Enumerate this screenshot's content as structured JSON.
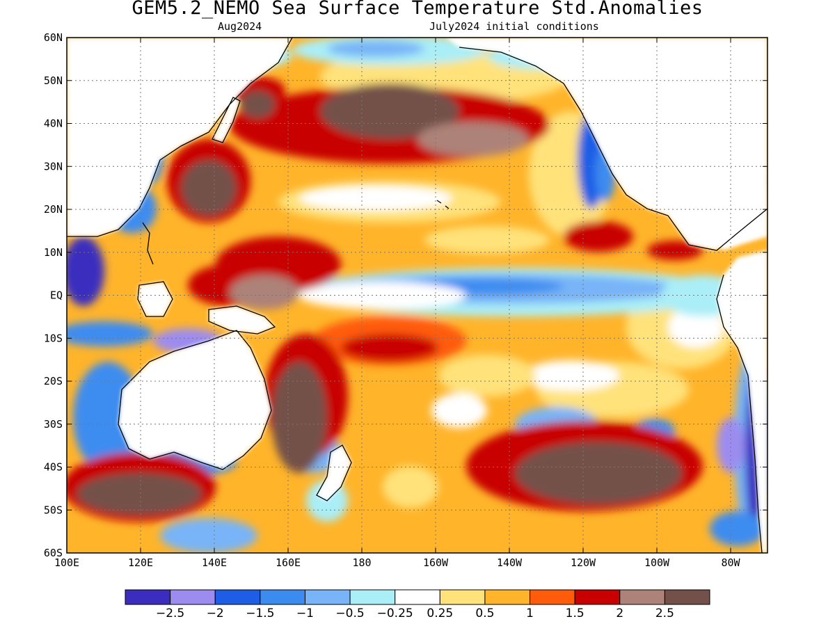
{
  "title": "GEM5.2_NEMO Sea Surface Temperature Std.Anomalies",
  "subtitle_left": "Aug2024",
  "subtitle_right": "July2024 initial conditions",
  "map": {
    "lon_range": [
      100,
      290
    ],
    "lat_range": [
      -60,
      60
    ],
    "x_ticks": [
      {
        "lon": 100,
        "label": "100E"
      },
      {
        "lon": 120,
        "label": "120E"
      },
      {
        "lon": 140,
        "label": "140E"
      },
      {
        "lon": 160,
        "label": "160E"
      },
      {
        "lon": 180,
        "label": "180"
      },
      {
        "lon": 200,
        "label": "160W"
      },
      {
        "lon": 220,
        "label": "140W"
      },
      {
        "lon": 240,
        "label": "120W"
      },
      {
        "lon": 260,
        "label": "100W"
      },
      {
        "lon": 280,
        "label": "80W"
      }
    ],
    "y_ticks": [
      {
        "lat": 60,
        "label": "60N"
      },
      {
        "lat": 50,
        "label": "50N"
      },
      {
        "lat": 40,
        "label": "40N"
      },
      {
        "lat": 30,
        "label": "30N"
      },
      {
        "lat": 20,
        "label": "20N"
      },
      {
        "lat": 10,
        "label": "10N"
      },
      {
        "lat": 0,
        "label": "EQ"
      },
      {
        "lat": -10,
        "label": "10S"
      },
      {
        "lat": -20,
        "label": "20S"
      },
      {
        "lat": -30,
        "label": "30S"
      },
      {
        "lat": -40,
        "label": "40S"
      },
      {
        "lat": -50,
        "label": "50S"
      },
      {
        "lat": -60,
        "label": "60S"
      }
    ],
    "grid": true
  },
  "colorbar": {
    "colors": [
      "#3b2ebf",
      "#9c8cf0",
      "#1e5ee6",
      "#3c8cf0",
      "#78b4f7",
      "#aaeef7",
      "#ffffff",
      "#ffe27a",
      "#ffb42a",
      "#ff5c0a",
      "#c80000",
      "#ad8278",
      "#73514a"
    ],
    "labels": [
      "-2.5",
      "-2",
      "-1.5",
      "-1",
      "-0.5",
      "-0.25",
      "0.25",
      "0.5",
      "1",
      "1.5",
      "2",
      "2.5"
    ]
  },
  "colors": {
    "ocean_base": "#ffb42a",
    "land": "#ffffff",
    "coastline": "#000000"
  }
}
